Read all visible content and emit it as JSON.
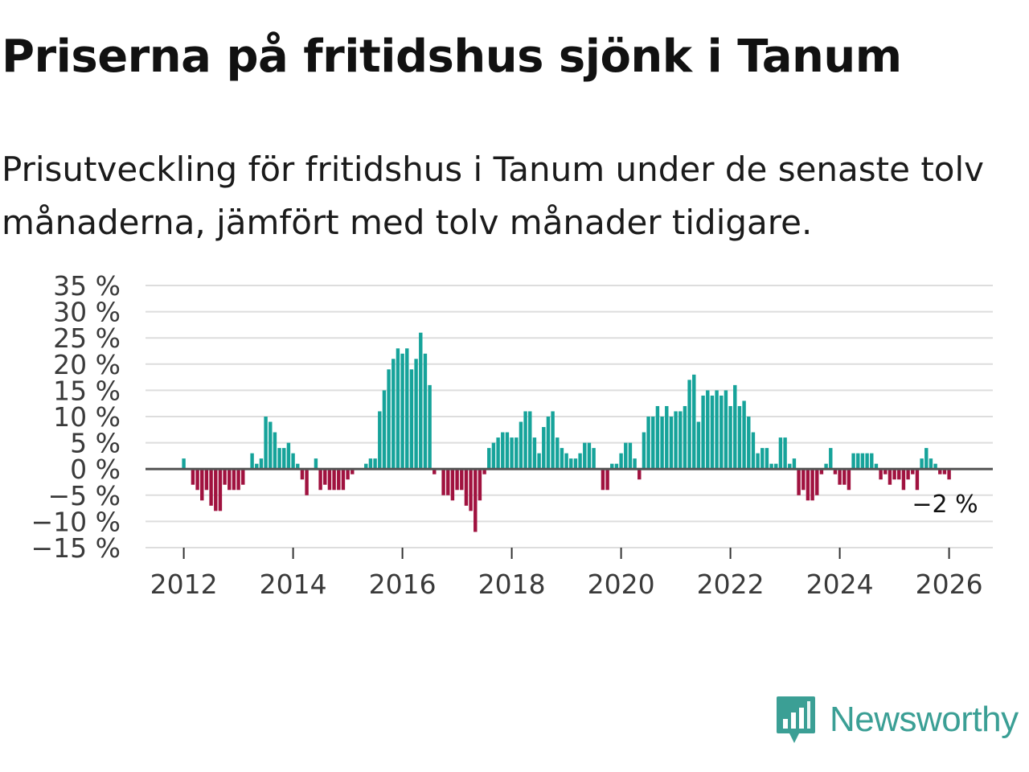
{
  "title": "Priserna på fritidshus sjönk i Tanum",
  "subtitle": "Prisutveckling för fritidshus i Tanum under de senaste tolv månaderna, jämfört med tolv månader tidigare.",
  "brand": {
    "name": "Newsworthy",
    "icon": "newsworthy-logo-icon"
  },
  "colors": {
    "positive": "#16a39a",
    "negative": "#a0123f",
    "zero_line": "#555555",
    "grid": "#dddddd",
    "brand": "#3b9f95"
  },
  "chart_data": {
    "type": "bar",
    "title": "Priserna på fritidshus sjönk i Tanum",
    "xlabel": "",
    "ylabel": "",
    "xlim": [
      2011.3,
      2026.8
    ],
    "ylim": [
      -15,
      35
    ],
    "y_ticks": [
      35,
      30,
      25,
      20,
      15,
      10,
      5,
      0,
      -5,
      -10,
      -15
    ],
    "y_tick_labels": [
      "35 %",
      "30 %",
      "25 %",
      "20 %",
      "15 %",
      "10 %",
      "5 %",
      "0 %",
      "−5 %",
      "−10 %",
      "−15 %"
    ],
    "x_ticks": [
      2012,
      2014,
      2016,
      2018,
      2020,
      2022,
      2024,
      2026
    ],
    "x_tick_labels": [
      "2012",
      "2014",
      "2016",
      "2018",
      "2020",
      "2022",
      "2024",
      "2026"
    ],
    "grid": true,
    "start": "2012-01",
    "series": [
      {
        "name": "Prisutveckling (%)",
        "values": [
          2,
          0,
          -3,
          -4,
          -6,
          -4,
          -7,
          -8,
          -8,
          -3,
          -4,
          -4,
          -4,
          -3,
          0,
          3,
          1,
          2,
          10,
          9,
          7,
          4,
          4,
          5,
          3,
          1,
          -2,
          -5,
          0,
          2,
          -4,
          -3,
          -4,
          -4,
          -4,
          -4,
          -2,
          -1,
          0,
          0,
          1,
          2,
          2,
          11,
          15,
          19,
          21,
          23,
          22,
          23,
          19,
          21,
          26,
          22,
          16,
          -1,
          0,
          -5,
          -5,
          -6,
          -4,
          -4,
          -7,
          -8,
          -12,
          -6,
          -1,
          4,
          5,
          6,
          7,
          7,
          6,
          6,
          9,
          11,
          11,
          6,
          3,
          8,
          10,
          11,
          6,
          4,
          3,
          2,
          2,
          3,
          5,
          5,
          4,
          0,
          -4,
          -4,
          1,
          1,
          3,
          5,
          5,
          2,
          -2,
          7,
          10,
          10,
          12,
          10,
          12,
          10,
          11,
          11,
          12,
          17,
          18,
          9,
          14,
          15,
          14,
          15,
          14,
          15,
          12,
          16,
          12,
          13,
          10,
          7,
          3,
          4,
          4,
          1,
          1,
          6,
          6,
          1,
          2,
          -5,
          -4,
          -6,
          -6,
          -5,
          -1,
          1,
          4,
          -1,
          -3,
          -3,
          -4,
          3,
          3,
          3,
          3,
          3,
          1,
          -2,
          -1,
          -3,
          -2,
          -2,
          -4,
          -2,
          -1,
          -4,
          2,
          4,
          2,
          1,
          -1,
          -1,
          -2
        ]
      }
    ],
    "annotations": [
      {
        "text": "−2 %",
        "target": "last",
        "value": -2
      }
    ]
  }
}
